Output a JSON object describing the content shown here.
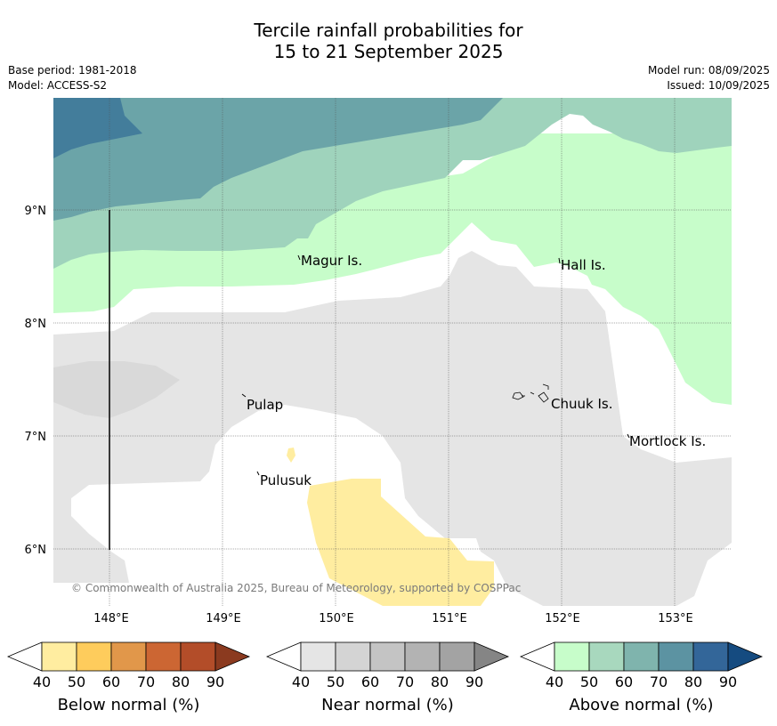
{
  "title": {
    "line1": "Tercile rainfall probabilities for",
    "line2": "15 to 21 September 2025"
  },
  "meta": {
    "base_period": "Base period: 1981-2018",
    "model": "Model: ACCESS-S2",
    "model_run": "Model run: 08/09/2025",
    "issued": "Issued: 10/09/2025"
  },
  "map": {
    "lon_range": [
      147.5,
      153.5
    ],
    "lat_range": [
      5.5,
      10.0
    ],
    "lon_ticks": [
      "148°E",
      "149°E",
      "150°E",
      "151°E",
      "152°E",
      "153°E"
    ],
    "lat_ticks": [
      "9°N",
      "8°N",
      "7°N",
      "6°N"
    ],
    "places": [
      {
        "name": "Magur Is."
      },
      {
        "name": "Hall Is."
      },
      {
        "name": "Pulap"
      },
      {
        "name": "Chuuk Is."
      },
      {
        "name": "Mortlock Is."
      },
      {
        "name": "Pulusuk"
      }
    ],
    "copyright": "© Commonwealth of Australia 2025, Bureau of Meteorology, supported by COSPPac"
  },
  "colorbars": [
    {
      "label": "Below normal (%)",
      "ticks": [
        "40",
        "50",
        "60",
        "70",
        "80",
        "90"
      ],
      "colors": [
        "#ffffff",
        "#ffeda0",
        "#fecc5c",
        "#e1974a",
        "#cc6633",
        "#b34d29",
        "#8b3a1f"
      ]
    },
    {
      "label": "Near normal (%)",
      "ticks": [
        "40",
        "50",
        "60",
        "70",
        "80",
        "90"
      ],
      "colors": [
        "#ffffff",
        "#e5e5e5",
        "#d4d4d4",
        "#c4c4c4",
        "#b3b3b3",
        "#a3a3a3",
        "#858585"
      ]
    },
    {
      "label": "Above normal (%)",
      "ticks": [
        "40",
        "50",
        "60",
        "70",
        "80",
        "90"
      ],
      "colors": [
        "#ffffff",
        "#c7fdca",
        "#a8d8be",
        "#7fb4ad",
        "#5c93a2",
        "#336699",
        "#154b80"
      ]
    }
  ],
  "colors": {
    "below_50": "#ffeda0",
    "near_50": "#e5e5e5",
    "near_60": "#d9d9d9",
    "above_50": "#c7fdca",
    "above_60": "#9fd3bc",
    "above_70": "#6ba4a8",
    "above_80": "#437d9b"
  }
}
